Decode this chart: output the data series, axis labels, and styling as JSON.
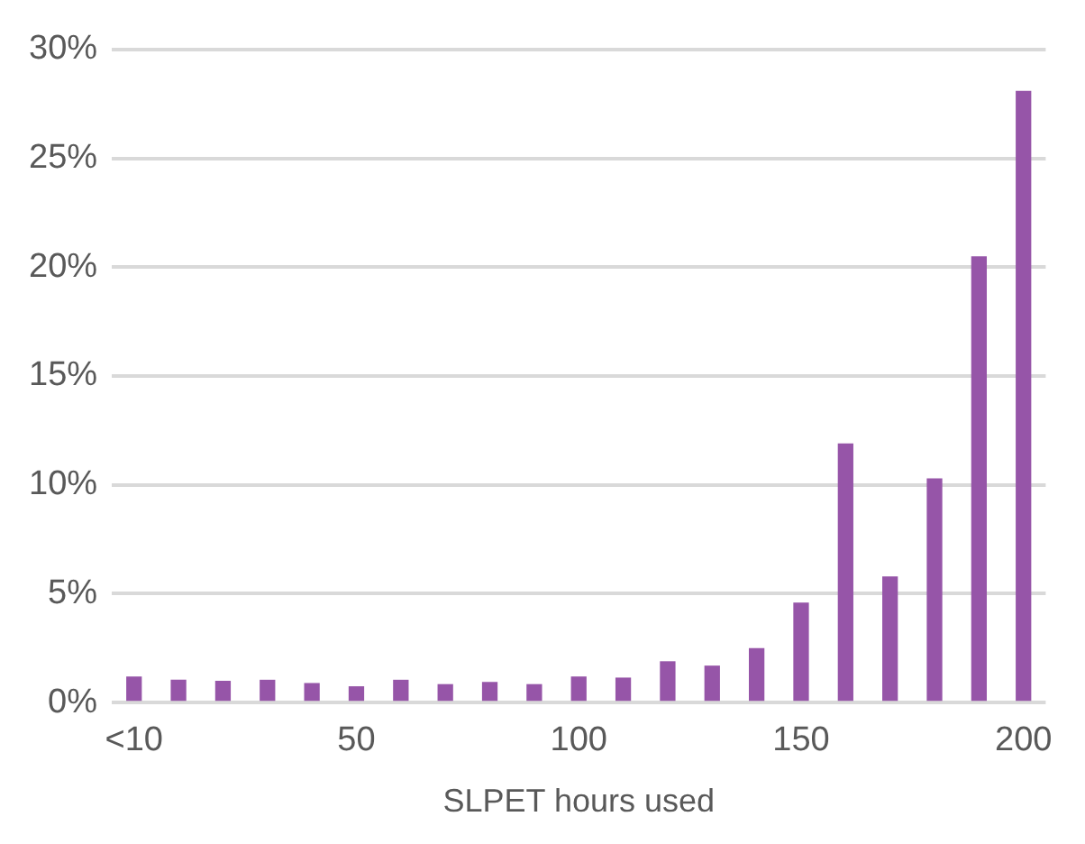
{
  "chart_data": {
    "type": "bar",
    "xlabel": "SLPET hours used",
    "categories": [
      "<10",
      null,
      null,
      null,
      null,
      "50",
      null,
      null,
      null,
      null,
      "100",
      null,
      null,
      null,
      null,
      "150",
      null,
      null,
      null,
      null,
      "200"
    ],
    "values": [
      1.2,
      1.05,
      1.0,
      1.05,
      0.9,
      0.75,
      1.05,
      0.85,
      0.95,
      0.85,
      1.2,
      1.15,
      1.9,
      1.7,
      2.5,
      4.6,
      11.9,
      5.8,
      10.3,
      20.5,
      28.1
    ],
    "color": "#9655a8",
    "ylim": [
      0,
      30
    ],
    "yticks": [
      {
        "value": 0,
        "label": "0%"
      },
      {
        "value": 5,
        "label": "5%"
      },
      {
        "value": 10,
        "label": "10%"
      },
      {
        "value": 15,
        "label": "15%"
      },
      {
        "value": 20,
        "label": "20%"
      },
      {
        "value": 25,
        "label": "25%"
      },
      {
        "value": 30,
        "label": "30%"
      }
    ],
    "grid": "y",
    "legend": false
  }
}
